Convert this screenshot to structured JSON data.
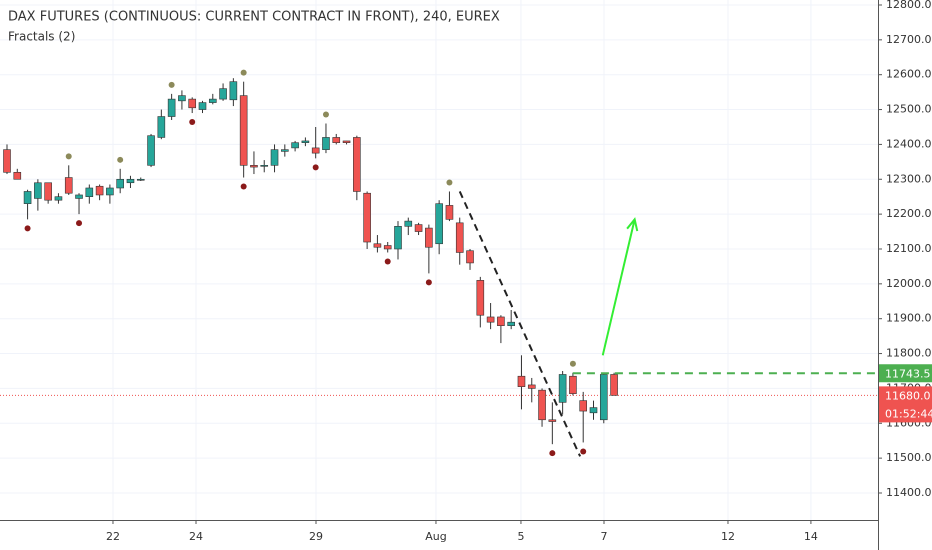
{
  "chart_data": {
    "type": "candlestick",
    "title": "DAX FUTURES (CONTINUOUS: CURRENT CONTRACT IN FRONT), 240, EUREX",
    "subtitle": "Fractals (2)",
    "x": [
      0,
      1,
      2,
      3,
      4,
      5,
      6,
      7,
      8,
      9,
      10,
      11,
      12,
      13,
      14,
      15,
      16,
      17,
      18,
      19,
      20,
      21,
      22,
      23,
      24,
      25,
      26,
      27,
      28,
      29,
      30,
      31,
      32,
      33,
      34,
      35,
      36,
      37,
      38,
      39,
      40,
      41,
      42,
      43,
      44,
      45,
      46,
      47,
      48,
      49,
      50,
      51,
      52,
      53,
      54,
      55,
      56,
      57,
      58,
      59
    ],
    "open": [
      12385,
      12320,
      12230,
      12245,
      12290,
      12240,
      12305,
      12245,
      12250,
      12280,
      12255,
      12275,
      12290,
      12300,
      12340,
      12420,
      12480,
      12525,
      12530,
      12500,
      12520,
      12530,
      12528,
      12540,
      12340,
      12340,
      12340,
      12380,
      12390,
      12405,
      12390,
      12385,
      12420,
      12410,
      12420,
      12260,
      12115,
      12110,
      12100,
      12165,
      12170,
      12160,
      12115,
      12225,
      12175,
      12095,
      12010,
      11905,
      11905,
      11880,
      11735,
      11710,
      11695,
      11610,
      11660,
      11735,
      11665,
      11630,
      11610,
      11740
    ],
    "high": [
      12400,
      12330,
      12270,
      12300,
      12290,
      12260,
      12340,
      12260,
      12285,
      12285,
      12285,
      12330,
      12310,
      12305,
      12430,
      12500,
      12545,
      12555,
      12535,
      12525,
      12545,
      12575,
      12590,
      12580,
      12380,
      12355,
      12400,
      12400,
      12410,
      12420,
      12450,
      12460,
      12430,
      12410,
      12425,
      12265,
      12140,
      12120,
      12180,
      12190,
      12175,
      12170,
      12240,
      12265,
      12190,
      12100,
      12020,
      11945,
      11910,
      11925,
      11795,
      11730,
      11700,
      11660,
      11750,
      11745,
      11690,
      11665,
      11745,
      11745
    ],
    "low": [
      12315,
      12300,
      12185,
      12210,
      12230,
      12230,
      12255,
      12200,
      12230,
      12240,
      12230,
      12260,
      12275,
      12295,
      12335,
      12415,
      12470,
      12500,
      12490,
      12490,
      12515,
      12525,
      12510,
      12305,
      12315,
      12320,
      12320,
      12365,
      12380,
      12395,
      12360,
      12375,
      12400,
      12400,
      12240,
      12100,
      12090,
      12090,
      12070,
      12140,
      12140,
      12030,
      12085,
      12180,
      12055,
      12040,
      11875,
      11870,
      11830,
      11870,
      11640,
      11660,
      11590,
      11540,
      11625,
      11680,
      11545,
      11610,
      11600,
      11680
    ],
    "close": [
      12320,
      12300,
      12265,
      12290,
      12240,
      12250,
      12260,
      12255,
      12275,
      12255,
      12275,
      12300,
      12300,
      12300,
      12425,
      12480,
      12530,
      12540,
      12505,
      12520,
      12530,
      12560,
      12580,
      12340,
      12335,
      12340,
      12385,
      12385,
      12405,
      12410,
      12375,
      12420,
      12405,
      12405,
      12265,
      12120,
      12105,
      12100,
      12165,
      12180,
      12150,
      12105,
      12230,
      12185,
      12090,
      12060,
      11910,
      11890,
      11880,
      11890,
      11705,
      11700,
      11610,
      11605,
      11740,
      11685,
      11635,
      11645,
      11740,
      11680
    ],
    "up_color": "#26a69a",
    "down_color": "#ef5350",
    "fractals": {
      "up": {
        "x": [
          6,
          11,
          16,
          23,
          31,
          43,
          55
        ],
        "values": [
          12340,
          12330,
          12545,
          12580,
          12460,
          12265,
          11745
        ],
        "color": "#8c8a5a"
      },
      "down": {
        "x": [
          2,
          7,
          18,
          23,
          30,
          37,
          41,
          53,
          56
        ],
        "values": [
          12185,
          12200,
          12490,
          12305,
          12360,
          12090,
          12030,
          11540,
          11545
        ],
        "color": "#8b1a1a"
      }
    },
    "annotations": {
      "trend_line": {
        "x": [
          44.0,
          55.7
        ],
        "y": [
          12265,
          11505
        ]
      },
      "level": 11743.5,
      "level_start": 55,
      "arrow": {
        "x": [
          57.9,
          61.0
        ],
        "y": [
          11795,
          12185
        ]
      },
      "last_price": {
        "value": 11680.0,
        "label": "11680.0"
      },
      "countdown": "01:52:44"
    },
    "xlim": [
      -0.68,
      84.65
    ],
    "xticks": [
      {
        "value": 10.3,
        "label": "22"
      },
      {
        "value": 18.37,
        "label": "24"
      },
      {
        "value": 30.03,
        "label": "29"
      },
      {
        "value": 41.69,
        "label": "Aug"
      },
      {
        "value": 49.95,
        "label": "5"
      },
      {
        "value": 58.02,
        "label": "7"
      },
      {
        "value": 70.07,
        "label": "12"
      },
      {
        "value": 78.13,
        "label": "14"
      }
    ],
    "ylim": [
      11322.5,
      12814.3
    ],
    "yticks": [
      {
        "value": 11400,
        "label": "11400.0"
      },
      {
        "value": 11500,
        "label": "11500.0"
      },
      {
        "value": 11600,
        "label": "11600.0"
      },
      {
        "value": 11700,
        "label": "11700.0"
      },
      {
        "value": 11800,
        "label": "11800.0"
      },
      {
        "value": 11900,
        "label": "11900.0"
      },
      {
        "value": 12000,
        "label": "12000.0"
      },
      {
        "value": 12100,
        "label": "12100.0"
      },
      {
        "value": 12200,
        "label": "12200.0"
      },
      {
        "value": 12300,
        "label": "12300.0"
      },
      {
        "value": 12400,
        "label": "12400.0"
      },
      {
        "value": 12500,
        "label": "12500.0"
      },
      {
        "value": 12600,
        "label": "12600.0"
      },
      {
        "value": 12700,
        "label": "12700.0"
      },
      {
        "value": 12800,
        "label": "12800.0"
      }
    ],
    "grid": true
  }
}
